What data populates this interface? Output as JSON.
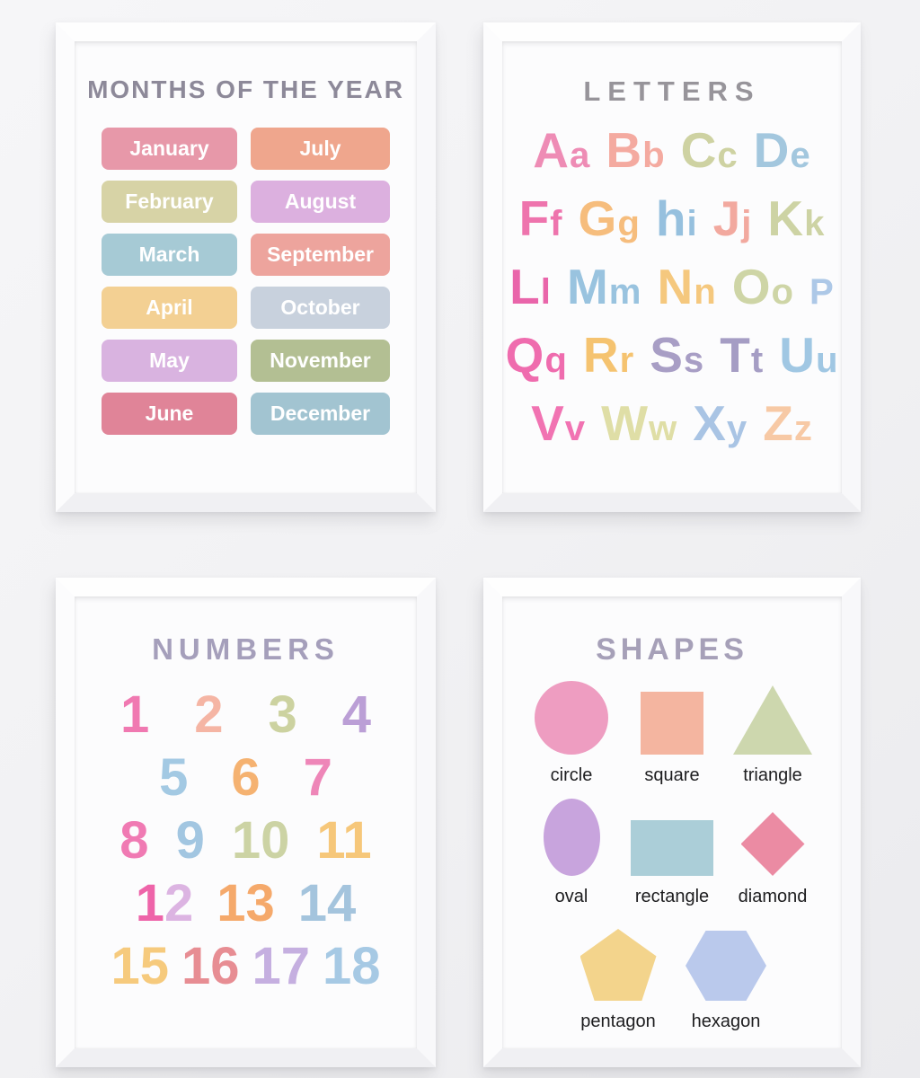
{
  "posters": {
    "months": {
      "title": "MONTHS OF THE YEAR",
      "title_color": "#8d8999",
      "items": [
        {
          "label": "January",
          "color": "#e798a9"
        },
        {
          "label": "February",
          "color": "#d7d3a6"
        },
        {
          "label": "March",
          "color": "#a6cad5"
        },
        {
          "label": "April",
          "color": "#f3d093"
        },
        {
          "label": "May",
          "color": "#d9b3e0"
        },
        {
          "label": "June",
          "color": "#e08498"
        },
        {
          "label": "July",
          "color": "#efa68d"
        },
        {
          "label": "August",
          "color": "#dcb0df"
        },
        {
          "label": "September",
          "color": "#eda49d"
        },
        {
          "label": "October",
          "color": "#c8d1dd"
        },
        {
          "label": "November",
          "color": "#b3bf93"
        },
        {
          "label": "December",
          "color": "#a2c4d1"
        }
      ]
    },
    "letters": {
      "title": "LETTERS",
      "title_color": "#97949a",
      "rows": [
        [
          {
            "big": "A",
            "small": "a",
            "color": "#ee8cb5"
          },
          {
            "big": "B",
            "small": "b",
            "color": "#f4aaa0"
          },
          {
            "big": "C",
            "small": "c",
            "color": "#ced2a2"
          },
          {
            "big": "D",
            "small": "e",
            "color": "#a3c7de"
          }
        ],
        [
          {
            "big": "F",
            "small": "f",
            "color": "#ee74ad"
          },
          {
            "big": "G",
            "small": "g",
            "color": "#f6bd7d"
          },
          {
            "big": "h",
            "small": "i",
            "color": "#96c0de"
          },
          {
            "big": "J",
            "small": "j",
            "color": "#f2a99f"
          },
          {
            "big": "K",
            "small": "k",
            "color": "#cdd3a4"
          }
        ],
        [
          {
            "big": "L",
            "small": "l",
            "color": "#e965aa"
          },
          {
            "big": "M",
            "small": "m",
            "color": "#99c3df"
          },
          {
            "big": "N",
            "small": "n",
            "color": "#f5c87e"
          },
          {
            "big": "O",
            "small": "o",
            "color": "#ced5a6"
          },
          {
            "big": "",
            "small": "P",
            "color": "#adc8e7"
          }
        ],
        [
          {
            "big": "Q",
            "small": "q",
            "color": "#ef6cae"
          },
          {
            "big": "R",
            "small": "r",
            "color": "#f5c370"
          },
          {
            "big": "S",
            "small": "s",
            "color": "#a89ec5"
          },
          {
            "big": "T",
            "small": "t",
            "color": "#a59dc4"
          },
          {
            "big": "U",
            "small": "u",
            "color": "#a0c7e3"
          }
        ],
        [
          {
            "big": "V",
            "small": "v",
            "color": "#f173b2"
          },
          {
            "big": "W",
            "small": "w",
            "color": "#dfdea6"
          },
          {
            "big": "X",
            "small": "y",
            "color": "#a9c4e4"
          },
          {
            "big": "Z",
            "small": "z",
            "color": "#f7c9a5"
          }
        ]
      ]
    },
    "numbers": {
      "title": "NUMBERS",
      "title_color": "#a59fbb",
      "rows": [
        [
          {
            "text": "1",
            "colors": [
              "#f079b1"
            ]
          },
          {
            "text": "2",
            "colors": [
              "#f5b5a4"
            ]
          },
          {
            "text": "3",
            "colors": [
              "#ccd2a0"
            ]
          },
          {
            "text": "4",
            "colors": [
              "#bb9fd6"
            ]
          }
        ],
        [
          {
            "text": "5",
            "colors": [
              "#a3c9e3"
            ]
          },
          {
            "text": "6",
            "colors": [
              "#f5b271"
            ]
          },
          {
            "text": "7",
            "colors": [
              "#ee86b8"
            ]
          }
        ],
        [
          {
            "text": "8",
            "colors": [
              "#f07ab3"
            ]
          },
          {
            "text": "9",
            "colors": [
              "#a2c6e1"
            ]
          },
          {
            "text": "10",
            "colors": [
              "#ccd3a4"
            ]
          },
          {
            "text": "11",
            "colors": [
              "#f6c77a"
            ]
          }
        ],
        [
          {
            "text": "12",
            "colors": [
              "#ee64a9",
              "#dcb4e2"
            ]
          },
          {
            "text": "13",
            "colors": [
              "#f5a96b"
            ]
          },
          {
            "text": "14",
            "colors": [
              "#a4c4dd"
            ]
          }
        ],
        [
          {
            "text": "15",
            "colors": [
              "#f6ca7d"
            ]
          },
          {
            "text": "16",
            "colors": [
              "#e78d93"
            ]
          },
          {
            "text": "17",
            "colors": [
              "#c5afe0"
            ]
          },
          {
            "text": "18",
            "colors": [
              "#a6c9e4"
            ]
          }
        ]
      ]
    },
    "shapes": {
      "title": "SHAPES",
      "title_color": "#a6a0b8",
      "rows": [
        [
          {
            "name": "circle",
            "label": "circle",
            "color": "#ee9dc1"
          },
          {
            "name": "square",
            "label": "square",
            "color": "#f4b5a0"
          },
          {
            "name": "triangle",
            "label": "triangle",
            "color": "#cdd7ae"
          }
        ],
        [
          {
            "name": "oval",
            "label": "oval",
            "color": "#c8a4dd"
          },
          {
            "name": "rectangle",
            "label": "rectangle",
            "color": "#abced8"
          },
          {
            "name": "diamond",
            "label": "diamond",
            "color": "#eb8ba3"
          }
        ],
        [
          {
            "name": "pentagon",
            "label": "pentagon",
            "color": "#f3d48c"
          },
          {
            "name": "hexagon",
            "label": "hexagon",
            "color": "#bac9ec"
          }
        ]
      ]
    }
  }
}
